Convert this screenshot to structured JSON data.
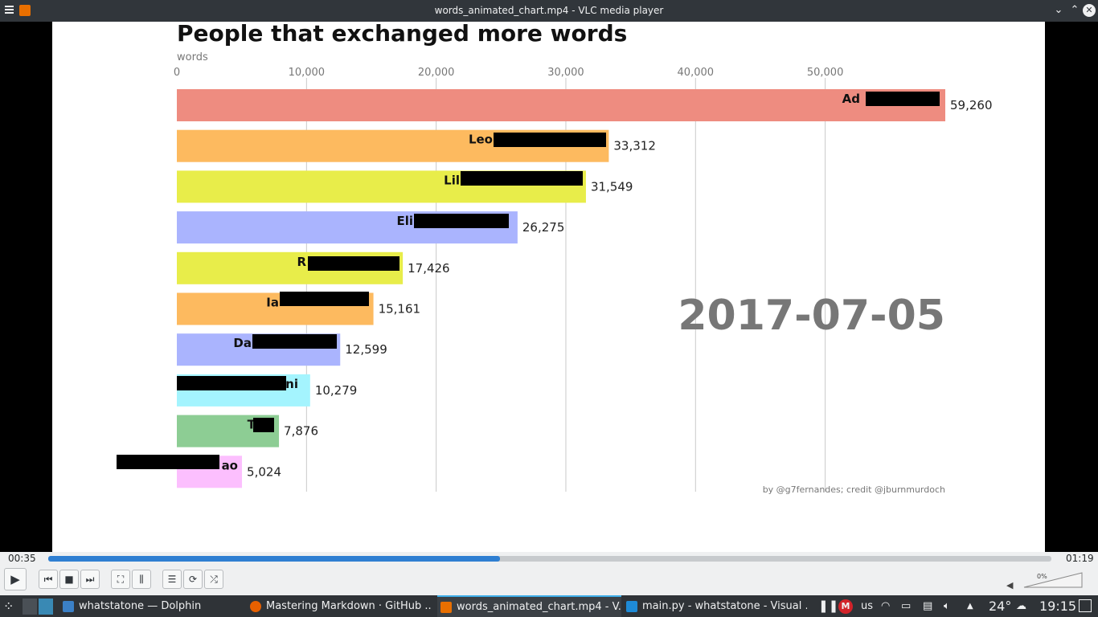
{
  "window": {
    "title": "words_animated_chart.mp4 - VLC media player",
    "minimize_glyph": "⌄",
    "maximize_glyph": "⌃",
    "close_glyph": "✕"
  },
  "chart_data": {
    "type": "bar",
    "orientation": "horizontal",
    "title": "People that exchanged more words",
    "xlabel": "words",
    "xlim": [
      0,
      59260
    ],
    "xticks": [
      0,
      10000,
      20000,
      30000,
      40000,
      50000
    ],
    "xtick_labels": [
      "0",
      "10,000",
      "20,000",
      "30,000",
      "40,000",
      "50,000"
    ],
    "date": "2017-07-05",
    "credit": "by @g7fernandes; credit @jburnmurdoch",
    "grid": true,
    "bars": [
      {
        "label": "Ad",
        "value": 59260,
        "value_label": "59,260",
        "color": "#ee8c80"
      },
      {
        "label": "Leo",
        "value": 33312,
        "value_label": "33,312",
        "color": "#fdba5f"
      },
      {
        "label": "Lil",
        "value": 31549,
        "value_label": "31,549",
        "color": "#e8ed4a"
      },
      {
        "label": "Eli",
        "value": 26275,
        "value_label": "26,275",
        "color": "#aab4fe"
      },
      {
        "label": "R",
        "value": 17426,
        "value_label": "17,426",
        "color": "#e8ed4a"
      },
      {
        "label": "Ia",
        "value": 15161,
        "value_label": "15,161",
        "color": "#fdba5f"
      },
      {
        "label": "Da",
        "value": 12599,
        "value_label": "12,599",
        "color": "#aab4fe"
      },
      {
        "label": "ini",
        "value": 10279,
        "value_label": "10,279",
        "color": "#a4f4fe"
      },
      {
        "label": "Ta",
        "value": 7876,
        "value_label": "7,876",
        "color": "#8dcd94"
      },
      {
        "label": "ao",
        "value": 5024,
        "value_label": "5,024",
        "color": "#fcbffe"
      }
    ]
  },
  "player": {
    "elapsed": "00:35",
    "total": "01:19",
    "progress": 0.45,
    "volume": "0%",
    "buttons": {
      "play": "▶",
      "previous": "⏮",
      "stop": "■",
      "next": "⏭",
      "fullscreen": "⛶",
      "extended": "⫼",
      "playlist": "☰",
      "loop": "⟳",
      "random": "⤮"
    }
  },
  "taskbar": {
    "items": [
      {
        "label": "whatstatone — Dolphin",
        "color": "#3b80c6"
      },
      {
        "label": "Mastering Markdown · GitHub ...",
        "color": "#e66000"
      },
      {
        "label": "words_animated_chart.mp4 - V...",
        "color": "#e86f00"
      },
      {
        "label": "main.py - whatstatone - Visual ...",
        "color": "#1e8ad6"
      }
    ],
    "keyboard": "us",
    "temperature": "24°",
    "clock": "19:15"
  }
}
